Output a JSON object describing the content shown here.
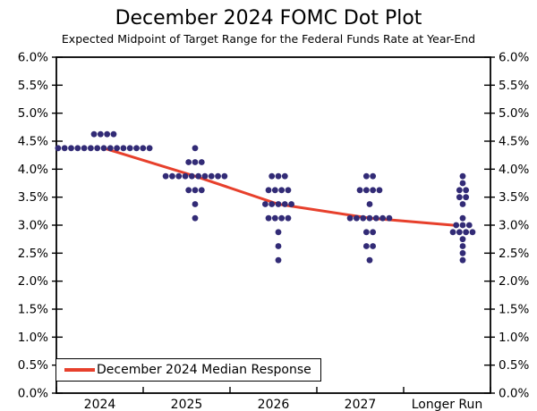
{
  "chart_data": {
    "type": "scatter",
    "variant": "fomc-dot-plot",
    "title": "December 2024 FOMC Dot Plot",
    "subtitle": "Expected Midpoint of Target Range for the Federal Funds Rate at Year-End",
    "categories": [
      "2024",
      "2025",
      "2026",
      "2027",
      "Longer Run"
    ],
    "xlabel": "",
    "ylabel": "",
    "ylim": [
      0,
      6
    ],
    "ytick_step": 0.5,
    "yticks": [
      [
        0.0,
        "0.0%"
      ],
      [
        0.5,
        "0.5%"
      ],
      [
        1.0,
        "1.0%"
      ],
      [
        1.5,
        "1.5%"
      ],
      [
        2.0,
        "2.0%"
      ],
      [
        2.5,
        "2.5%"
      ],
      [
        3.0,
        "3.0%"
      ],
      [
        3.5,
        "3.5%"
      ],
      [
        4.0,
        "4.0%"
      ],
      [
        4.5,
        "4.5%"
      ],
      [
        5.0,
        "5.0%"
      ],
      [
        5.5,
        "5.5%"
      ],
      [
        6.0,
        "6.0%"
      ]
    ],
    "y_axis_labeled_both_sides": true,
    "grid": false,
    "legend": {
      "label": "December 2024 Median Response",
      "position": "bottom-left"
    },
    "colors": {
      "dot": "#322b76",
      "median_line": "#e7402c",
      "axis": "#000000",
      "background": "#ffffff"
    },
    "series": [
      {
        "category": "2024",
        "dots": [
          {
            "rate": 4.625,
            "count": 4
          },
          {
            "rate": 4.375,
            "count": 15
          }
        ]
      },
      {
        "category": "2025",
        "dots": [
          {
            "rate": 4.375,
            "count": 1
          },
          {
            "rate": 4.125,
            "count": 3
          },
          {
            "rate": 3.875,
            "count": 10
          },
          {
            "rate": 3.625,
            "count": 3
          },
          {
            "rate": 3.375,
            "count": 1
          },
          {
            "rate": 3.125,
            "count": 1
          }
        ]
      },
      {
        "category": "2026",
        "dots": [
          {
            "rate": 3.875,
            "count": 3
          },
          {
            "rate": 3.625,
            "count": 4
          },
          {
            "rate": 3.375,
            "count": 5
          },
          {
            "rate": 3.125,
            "count": 4
          },
          {
            "rate": 2.875,
            "count": 1
          },
          {
            "rate": 2.625,
            "count": 1
          },
          {
            "rate": 2.375,
            "count": 1
          }
        ]
      },
      {
        "category": "2027",
        "dots": [
          {
            "rate": 3.875,
            "count": 2
          },
          {
            "rate": 3.625,
            "count": 4
          },
          {
            "rate": 3.375,
            "count": 1
          },
          {
            "rate": 3.125,
            "count": 7
          },
          {
            "rate": 2.875,
            "count": 2
          },
          {
            "rate": 2.625,
            "count": 2
          },
          {
            "rate": 2.375,
            "count": 1
          }
        ]
      },
      {
        "category": "Longer Run",
        "dots": [
          {
            "rate": 3.875,
            "count": 1
          },
          {
            "rate": 3.75,
            "count": 1
          },
          {
            "rate": 3.625,
            "count": 2
          },
          {
            "rate": 3.5,
            "count": 2
          },
          {
            "rate": 3.375,
            "count": 1
          },
          {
            "rate": 3.125,
            "count": 1
          },
          {
            "rate": 3.0,
            "count": 3
          },
          {
            "rate": 2.875,
            "count": 4
          },
          {
            "rate": 2.75,
            "count": 1
          },
          {
            "rate": 2.625,
            "count": 1
          },
          {
            "rate": 2.5,
            "count": 1
          },
          {
            "rate": 2.375,
            "count": 1
          }
        ]
      }
    ],
    "medians": [
      {
        "category": "2024",
        "value": 4.375
      },
      {
        "category": "2025",
        "value": 3.875
      },
      {
        "category": "2026",
        "value": 3.375
      },
      {
        "category": "2027",
        "value": 3.125
      },
      {
        "category": "Longer Run",
        "value": 3.0
      }
    ]
  }
}
